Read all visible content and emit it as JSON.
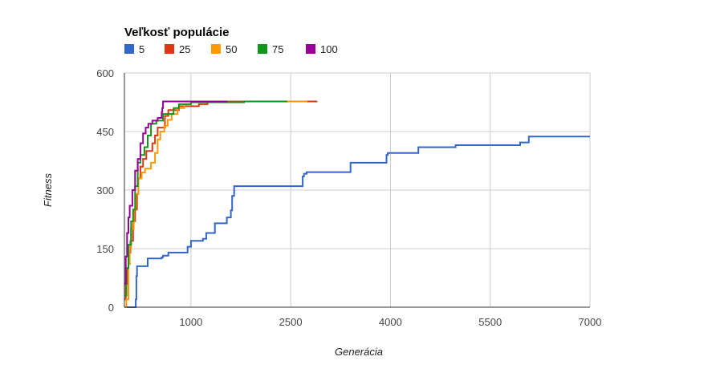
{
  "chart_data": {
    "type": "line",
    "step": true,
    "legend": {
      "title": "Veľkosť populácie",
      "position": "top-left"
    },
    "xlabel": "Generácia",
    "ylabel": "Fitness",
    "xlim": [
      0,
      7000
    ],
    "ylim": [
      0,
      600
    ],
    "x_ticks": [
      {
        "value": 1000,
        "label": "1000"
      },
      {
        "value": 2500,
        "label": "2500"
      },
      {
        "value": 4000,
        "label": "4000"
      },
      {
        "value": 5500,
        "label": "5500"
      },
      {
        "value": 7000,
        "label": "7000"
      }
    ],
    "y_ticks": [
      {
        "value": 0,
        "label": "0"
      },
      {
        "value": 150,
        "label": "150"
      },
      {
        "value": 300,
        "label": "300"
      },
      {
        "value": 450,
        "label": "450"
      },
      {
        "value": 600,
        "label": "600"
      }
    ],
    "grid": true,
    "series": [
      {
        "name": "5",
        "color": "#3366cc",
        "points": [
          [
            0,
            0
          ],
          [
            150,
            0
          ],
          [
            170,
            20
          ],
          [
            180,
            80
          ],
          [
            190,
            105
          ],
          [
            350,
            125
          ],
          [
            560,
            128
          ],
          [
            580,
            132
          ],
          [
            660,
            140
          ],
          [
            950,
            155
          ],
          [
            1000,
            170
          ],
          [
            1180,
            175
          ],
          [
            1230,
            190
          ],
          [
            1360,
            215
          ],
          [
            1540,
            230
          ],
          [
            1600,
            248
          ],
          [
            1620,
            285
          ],
          [
            1650,
            310
          ],
          [
            2680,
            335
          ],
          [
            2700,
            342
          ],
          [
            2740,
            346
          ],
          [
            3400,
            370
          ],
          [
            3940,
            390
          ],
          [
            3960,
            395
          ],
          [
            4420,
            410
          ],
          [
            4980,
            415
          ],
          [
            5950,
            422
          ],
          [
            6080,
            437
          ],
          [
            7000,
            437
          ]
        ]
      },
      {
        "name": "25",
        "color": "#dc3912",
        "points": [
          [
            0,
            20
          ],
          [
            20,
            60
          ],
          [
            40,
            100
          ],
          [
            60,
            140
          ],
          [
            90,
            170
          ],
          [
            130,
            220
          ],
          [
            160,
            250
          ],
          [
            190,
            290
          ],
          [
            210,
            330
          ],
          [
            240,
            360
          ],
          [
            280,
            380
          ],
          [
            330,
            400
          ],
          [
            420,
            420
          ],
          [
            460,
            440
          ],
          [
            500,
            460
          ],
          [
            610,
            490
          ],
          [
            660,
            505
          ],
          [
            820,
            515
          ],
          [
            1120,
            520
          ],
          [
            1250,
            525
          ],
          [
            1500,
            527
          ],
          [
            2900,
            527
          ]
        ]
      },
      {
        "name": "50",
        "color": "#ff9900",
        "points": [
          [
            0,
            0
          ],
          [
            30,
            20
          ],
          [
            60,
            110
          ],
          [
            80,
            150
          ],
          [
            100,
            200
          ],
          [
            140,
            250
          ],
          [
            170,
            290
          ],
          [
            210,
            330
          ],
          [
            260,
            345
          ],
          [
            310,
            355
          ],
          [
            400,
            370
          ],
          [
            460,
            395
          ],
          [
            500,
            430
          ],
          [
            540,
            450
          ],
          [
            600,
            465
          ],
          [
            650,
            480
          ],
          [
            710,
            495
          ],
          [
            800,
            510
          ],
          [
            900,
            520
          ],
          [
            1000,
            525
          ],
          [
            1800,
            527
          ],
          [
            2750,
            527
          ]
        ]
      },
      {
        "name": "75",
        "color": "#109618",
        "points": [
          [
            0,
            30
          ],
          [
            30,
            100
          ],
          [
            60,
            160
          ],
          [
            100,
            220
          ],
          [
            130,
            250
          ],
          [
            160,
            310
          ],
          [
            200,
            370
          ],
          [
            240,
            390
          ],
          [
            300,
            410
          ],
          [
            350,
            440
          ],
          [
            400,
            470
          ],
          [
            480,
            478
          ],
          [
            580,
            495
          ],
          [
            740,
            510
          ],
          [
            820,
            520
          ],
          [
            1000,
            525
          ],
          [
            1800,
            527
          ],
          [
            2450,
            527
          ]
        ]
      },
      {
        "name": "100",
        "color": "#990099",
        "points": [
          [
            0,
            60
          ],
          [
            20,
            130
          ],
          [
            40,
            190
          ],
          [
            60,
            230
          ],
          [
            80,
            260
          ],
          [
            120,
            300
          ],
          [
            160,
            350
          ],
          [
            200,
            380
          ],
          [
            240,
            420
          ],
          [
            280,
            445
          ],
          [
            320,
            460
          ],
          [
            360,
            470
          ],
          [
            420,
            478
          ],
          [
            500,
            485
          ],
          [
            560,
            500
          ],
          [
            570,
            510
          ],
          [
            580,
            527
          ],
          [
            1550,
            527
          ]
        ]
      }
    ]
  }
}
